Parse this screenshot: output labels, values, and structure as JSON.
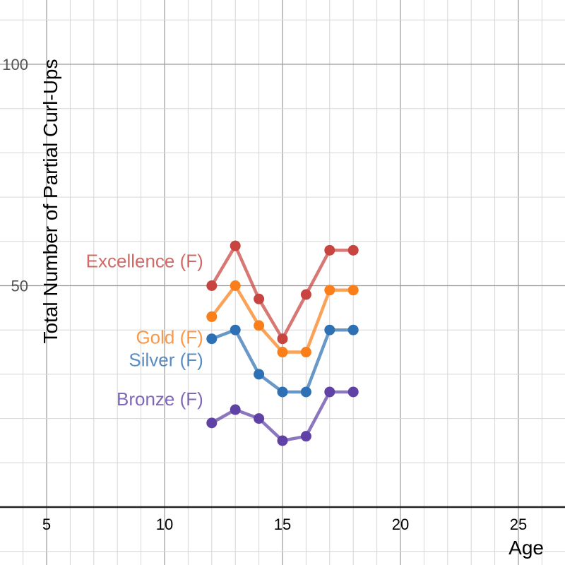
{
  "chart_data": {
    "type": "line",
    "title": "",
    "xlabel": "Age",
    "ylabel": "Total Number of Partial Curl-Ups",
    "xlim": [
      3,
      27
    ],
    "ylim": [
      0,
      110
    ],
    "x_ticks": [
      5,
      10,
      15,
      20,
      25
    ],
    "y_ticks": [
      50,
      100
    ],
    "grid": true,
    "x": [
      12,
      13,
      14,
      15,
      16,
      17,
      18
    ],
    "series": [
      {
        "name": "Excellence (F)",
        "color": "#c74440",
        "values": [
          50,
          59,
          47,
          38,
          48,
          58,
          58
        ]
      },
      {
        "name": "Gold (F)",
        "color": "#fa7e19",
        "values": [
          43,
          50,
          41,
          35,
          35,
          49,
          49
        ]
      },
      {
        "name": "Silver (F)",
        "color": "#2d70b3",
        "values": [
          38,
          40,
          30,
          26,
          26,
          40,
          40
        ]
      },
      {
        "name": "Bronze (F)",
        "color": "#6042a6",
        "values": [
          19,
          22,
          20,
          15,
          16,
          26,
          26
        ]
      }
    ]
  }
}
